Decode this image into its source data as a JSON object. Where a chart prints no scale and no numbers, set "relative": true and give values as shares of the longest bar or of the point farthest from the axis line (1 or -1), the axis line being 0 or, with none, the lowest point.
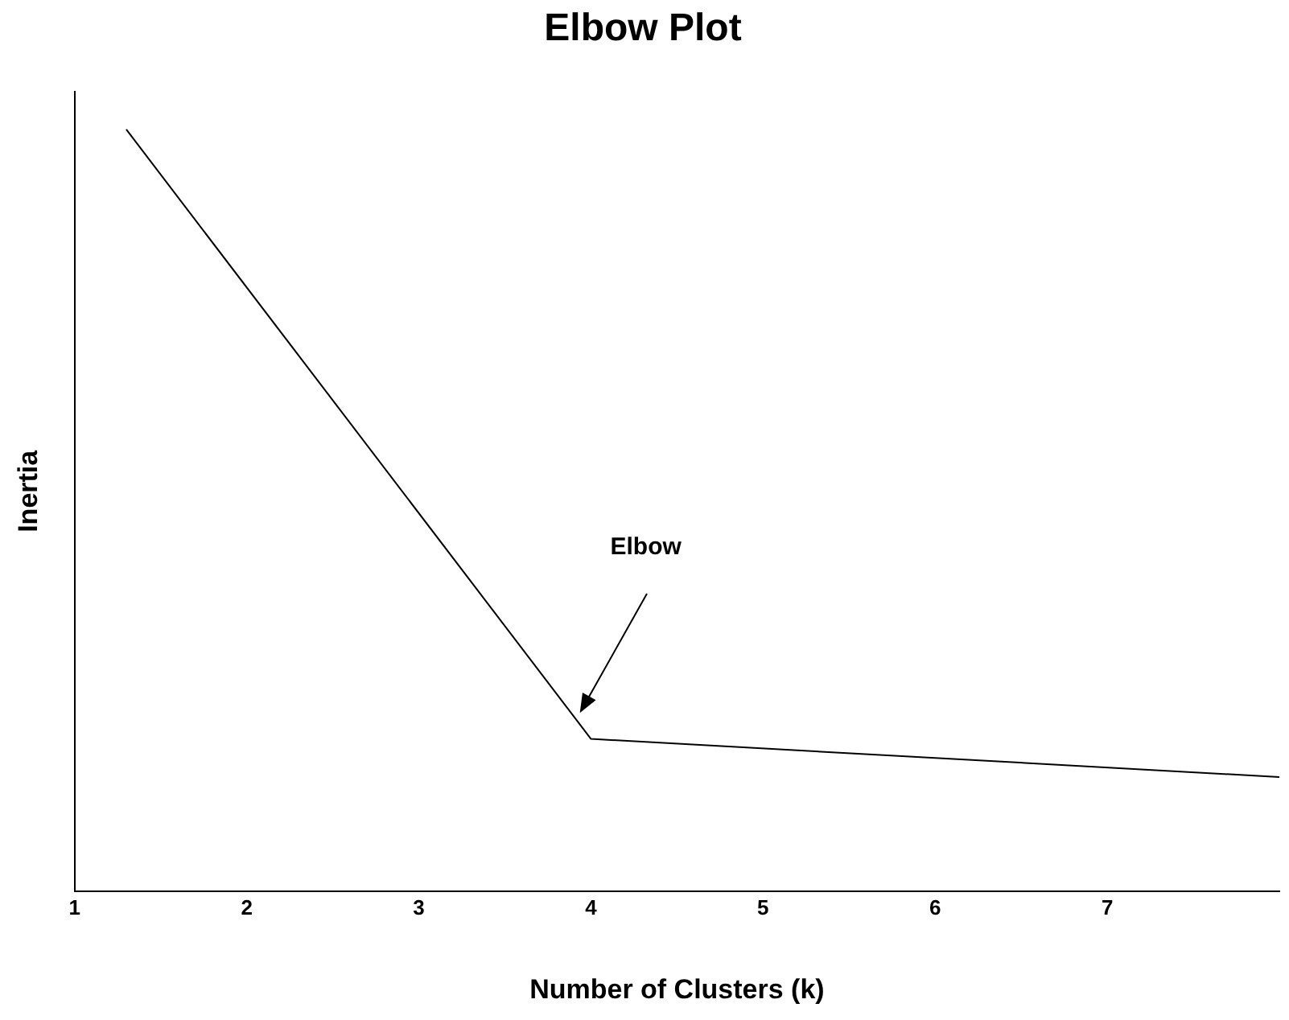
{
  "chart_data": {
    "type": "line",
    "title": "Elbow Plot",
    "xlabel": "Number of Clusters (k)",
    "ylabel": "Inertia",
    "relative": true,
    "x": [
      1.3,
      4,
      8
    ],
    "values": [
      1,
      0.2,
      0.15
    ],
    "color": "#000000",
    "xlim": [
      1,
      8
    ],
    "xticks": [
      1,
      2,
      3,
      4,
      5,
      6,
      7
    ],
    "grid": false,
    "legend": false,
    "marker": "none",
    "line_style": "solid",
    "annotations": [
      "Elbow"
    ]
  }
}
